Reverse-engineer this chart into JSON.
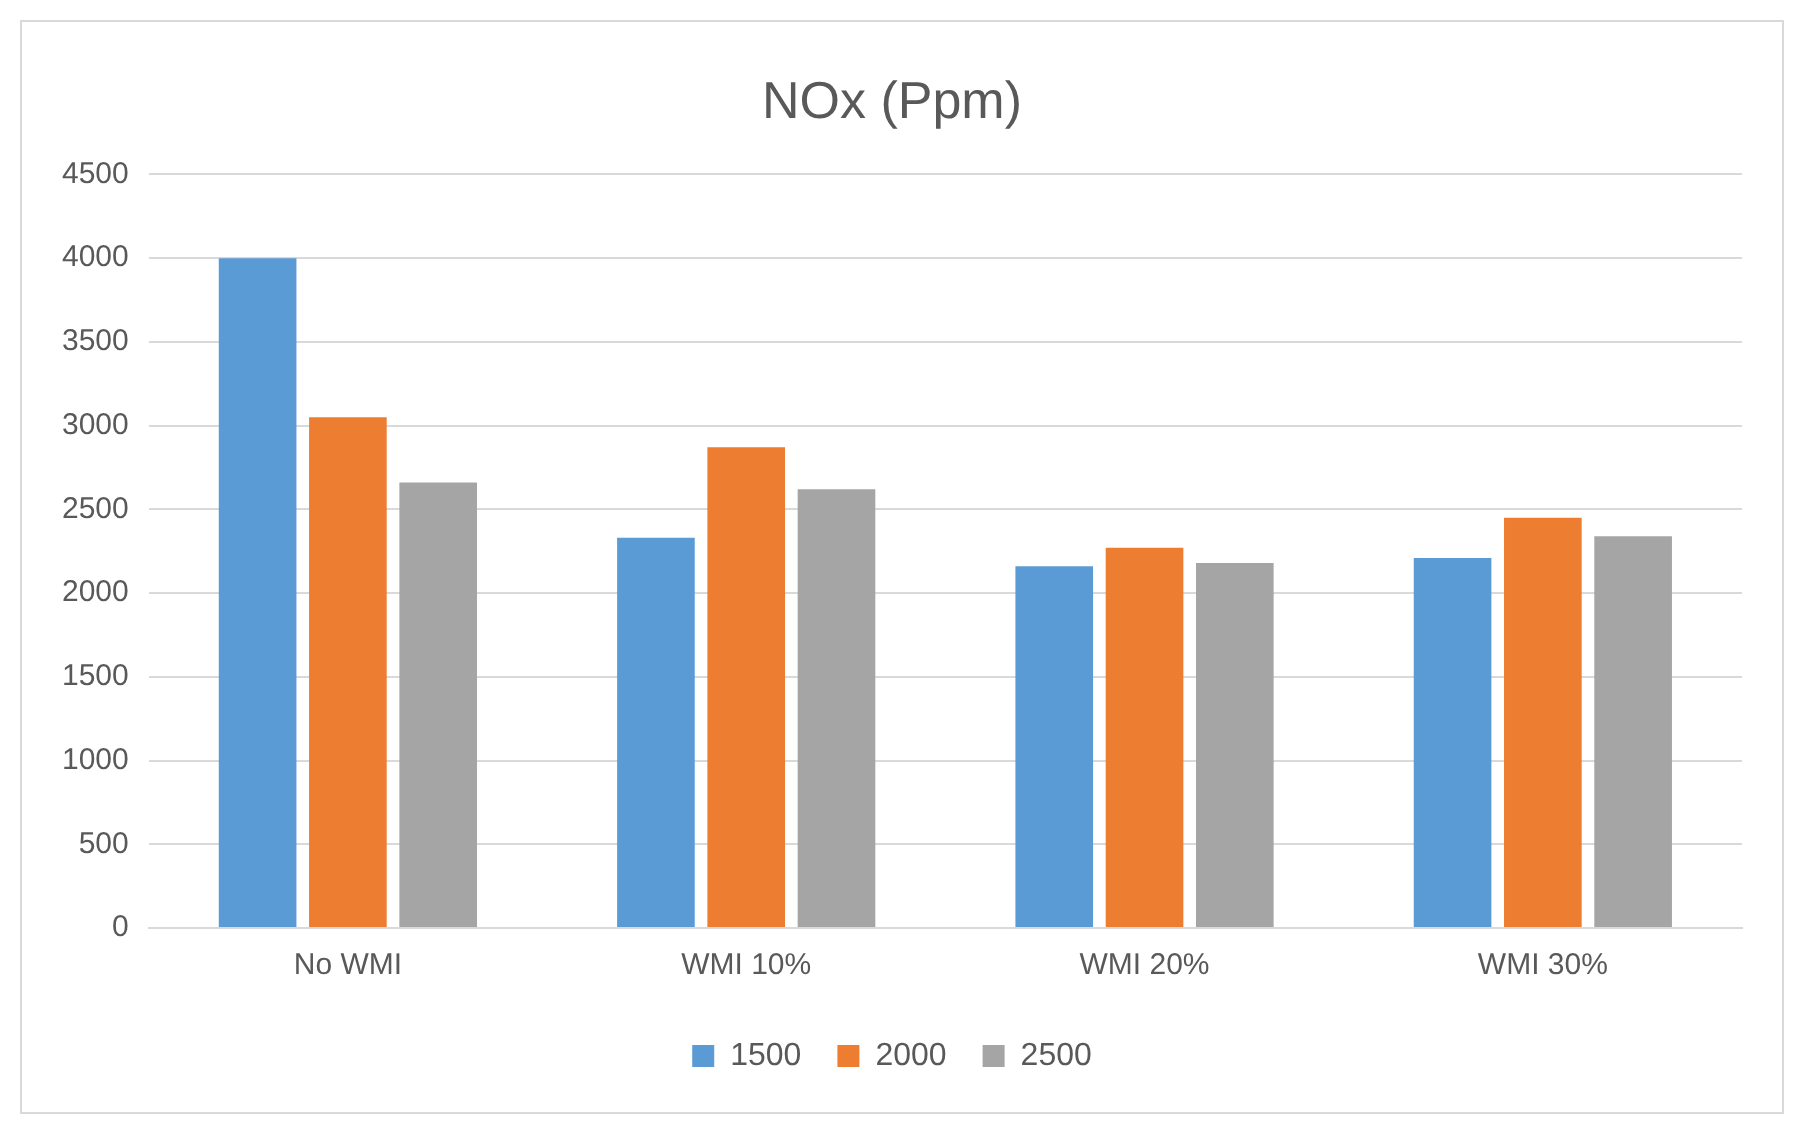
{
  "chart_data": {
    "type": "bar",
    "title": "NOx (Ppm)",
    "categories": [
      "No WMI",
      "WMI 10%",
      "WMI 20%",
      "WMI 30%"
    ],
    "series": [
      {
        "name": "1500",
        "color": "#5b9bd5",
        "values": [
          4000,
          2330,
          2160,
          2210
        ]
      },
      {
        "name": "2000",
        "color": "#ed7d31",
        "values": [
          3050,
          2870,
          2270,
          2450
        ]
      },
      {
        "name": "2500",
        "color": "#a5a5a5",
        "values": [
          2660,
          2620,
          2180,
          2340
        ]
      }
    ],
    "ylim": [
      0,
      4500
    ],
    "yticks": [
      0,
      500,
      1000,
      1500,
      2000,
      2500,
      3000,
      3500,
      4000,
      4500
    ],
    "grid": "y",
    "legend": "bottom"
  }
}
